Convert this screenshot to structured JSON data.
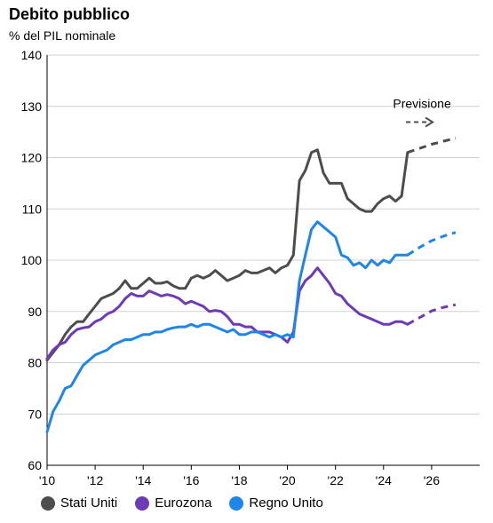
{
  "chart_data": {
    "type": "line",
    "title": "Debito pubblico",
    "subtitle": "% del PIL nominale",
    "ylim": [
      60,
      140
    ],
    "yticks": [
      60,
      70,
      80,
      90,
      100,
      110,
      120,
      130,
      140
    ],
    "xlim": [
      2010,
      2028
    ],
    "xticks": [
      {
        "value": 2010,
        "label": "'10"
      },
      {
        "value": 2012,
        "label": "'12"
      },
      {
        "value": 2014,
        "label": "'14"
      },
      {
        "value": 2016,
        "label": "'16"
      },
      {
        "value": 2018,
        "label": "'18"
      },
      {
        "value": 2020,
        "label": "'20"
      },
      {
        "value": 2022,
        "label": "'22"
      },
      {
        "value": 2024,
        "label": "'24"
      },
      {
        "value": 2026,
        "label": "'26"
      }
    ],
    "annotation": {
      "text": "Previsione",
      "x": 2025.6,
      "y": 129.7
    },
    "legend_placement": "bottom",
    "series": [
      {
        "name": "Stati Uniti",
        "color": "#4d4d4d",
        "actual": [
          [
            2010.0,
            80.5
          ],
          [
            2010.25,
            82.0
          ],
          [
            2010.5,
            83.5
          ],
          [
            2010.75,
            85.5
          ],
          [
            2011.0,
            87.0
          ],
          [
            2011.25,
            88.0
          ],
          [
            2011.5,
            88.0
          ],
          [
            2011.75,
            89.5
          ],
          [
            2012.0,
            91.0
          ],
          [
            2012.25,
            92.5
          ],
          [
            2012.5,
            93.0
          ],
          [
            2012.75,
            93.5
          ],
          [
            2013.0,
            94.5
          ],
          [
            2013.25,
            96.0
          ],
          [
            2013.5,
            94.5
          ],
          [
            2013.75,
            94.5
          ],
          [
            2014.0,
            95.5
          ],
          [
            2014.25,
            96.5
          ],
          [
            2014.5,
            95.5
          ],
          [
            2014.75,
            95.5
          ],
          [
            2015.0,
            95.8
          ],
          [
            2015.25,
            95.0
          ],
          [
            2015.5,
            94.5
          ],
          [
            2015.75,
            94.5
          ],
          [
            2016.0,
            96.5
          ],
          [
            2016.25,
            97.0
          ],
          [
            2016.5,
            96.5
          ],
          [
            2016.75,
            97.0
          ],
          [
            2017.0,
            98.0
          ],
          [
            2017.25,
            97.0
          ],
          [
            2017.5,
            96.0
          ],
          [
            2017.75,
            96.5
          ],
          [
            2018.0,
            97.0
          ],
          [
            2018.25,
            98.0
          ],
          [
            2018.5,
            97.5
          ],
          [
            2018.75,
            97.5
          ],
          [
            2019.0,
            98.0
          ],
          [
            2019.25,
            98.5
          ],
          [
            2019.5,
            97.5
          ],
          [
            2019.75,
            98.5
          ],
          [
            2020.0,
            99.0
          ],
          [
            2020.25,
            101.0
          ],
          [
            2020.5,
            115.5
          ],
          [
            2020.75,
            117.5
          ],
          [
            2021.0,
            121.0
          ],
          [
            2021.25,
            121.5
          ],
          [
            2021.5,
            117.0
          ],
          [
            2021.75,
            115.0
          ],
          [
            2022.0,
            115.0
          ],
          [
            2022.25,
            115.0
          ],
          [
            2022.5,
            112.0
          ],
          [
            2022.75,
            111.0
          ],
          [
            2023.0,
            110.0
          ],
          [
            2023.25,
            109.5
          ],
          [
            2023.5,
            109.5
          ],
          [
            2023.75,
            111.0
          ],
          [
            2024.0,
            112.0
          ],
          [
            2024.25,
            112.5
          ],
          [
            2024.5,
            111.5
          ],
          [
            2024.75,
            112.5
          ],
          [
            2025.0,
            121.0
          ]
        ],
        "forecast": [
          [
            2025.0,
            121.0
          ],
          [
            2025.5,
            121.8
          ],
          [
            2026.0,
            122.6
          ],
          [
            2026.5,
            123.2
          ],
          [
            2027.0,
            123.8
          ]
        ]
      },
      {
        "name": "Eurozona",
        "color": "#6e3ab8",
        "actual": [
          [
            2010.0,
            80.8
          ],
          [
            2010.25,
            82.5
          ],
          [
            2010.5,
            83.5
          ],
          [
            2010.75,
            84.0
          ],
          [
            2011.0,
            85.5
          ],
          [
            2011.25,
            86.5
          ],
          [
            2011.5,
            86.8
          ],
          [
            2011.75,
            87.0
          ],
          [
            2012.0,
            88.0
          ],
          [
            2012.25,
            88.5
          ],
          [
            2012.5,
            89.5
          ],
          [
            2012.75,
            90.0
          ],
          [
            2013.0,
            91.0
          ],
          [
            2013.25,
            92.5
          ],
          [
            2013.5,
            93.5
          ],
          [
            2013.75,
            93.0
          ],
          [
            2014.0,
            93.0
          ],
          [
            2014.25,
            94.0
          ],
          [
            2014.5,
            93.5
          ],
          [
            2014.75,
            93.0
          ],
          [
            2015.0,
            93.3
          ],
          [
            2015.25,
            93.0
          ],
          [
            2015.5,
            92.5
          ],
          [
            2015.75,
            91.5
          ],
          [
            2016.0,
            92.0
          ],
          [
            2016.25,
            91.5
          ],
          [
            2016.5,
            91.0
          ],
          [
            2016.75,
            90.0
          ],
          [
            2017.0,
            90.2
          ],
          [
            2017.25,
            90.0
          ],
          [
            2017.5,
            89.0
          ],
          [
            2017.75,
            87.5
          ],
          [
            2018.0,
            87.5
          ],
          [
            2018.25,
            87.0
          ],
          [
            2018.5,
            87.0
          ],
          [
            2018.75,
            86.0
          ],
          [
            2019.0,
            86.0
          ],
          [
            2019.25,
            86.0
          ],
          [
            2019.5,
            85.5
          ],
          [
            2019.75,
            85.0
          ],
          [
            2020.0,
            84.0
          ],
          [
            2020.25,
            86.0
          ],
          [
            2020.5,
            94.0
          ],
          [
            2020.75,
            96.0
          ],
          [
            2021.0,
            97.0
          ],
          [
            2021.25,
            98.5
          ],
          [
            2021.5,
            97.0
          ],
          [
            2021.75,
            95.5
          ],
          [
            2022.0,
            93.5
          ],
          [
            2022.25,
            93.0
          ],
          [
            2022.5,
            91.5
          ],
          [
            2022.75,
            90.5
          ],
          [
            2023.0,
            89.5
          ],
          [
            2023.25,
            89.0
          ],
          [
            2023.5,
            88.5
          ],
          [
            2023.75,
            88.0
          ],
          [
            2024.0,
            87.5
          ],
          [
            2024.25,
            87.5
          ],
          [
            2024.5,
            88.0
          ],
          [
            2024.75,
            88.0
          ],
          [
            2025.0,
            87.5
          ]
        ],
        "forecast": [
          [
            2025.0,
            87.5
          ],
          [
            2025.5,
            88.8
          ],
          [
            2026.0,
            90.1
          ],
          [
            2026.5,
            90.8
          ],
          [
            2027.0,
            91.3
          ]
        ]
      },
      {
        "name": "Regno Unito",
        "color": "#1f85ea",
        "actual": [
          [
            2010.0,
            66.5
          ],
          [
            2010.25,
            70.5
          ],
          [
            2010.5,
            72.5
          ],
          [
            2010.75,
            75.0
          ],
          [
            2011.0,
            75.5
          ],
          [
            2011.25,
            77.5
          ],
          [
            2011.5,
            79.5
          ],
          [
            2011.75,
            80.5
          ],
          [
            2012.0,
            81.5
          ],
          [
            2012.25,
            82.0
          ],
          [
            2012.5,
            82.5
          ],
          [
            2012.75,
            83.5
          ],
          [
            2013.0,
            84.0
          ],
          [
            2013.25,
            84.5
          ],
          [
            2013.5,
            84.5
          ],
          [
            2013.75,
            85.0
          ],
          [
            2014.0,
            85.5
          ],
          [
            2014.25,
            85.5
          ],
          [
            2014.5,
            86.0
          ],
          [
            2014.75,
            86.0
          ],
          [
            2015.0,
            86.5
          ],
          [
            2015.25,
            86.8
          ],
          [
            2015.5,
            87.0
          ],
          [
            2015.75,
            87.0
          ],
          [
            2016.0,
            87.5
          ],
          [
            2016.25,
            87.0
          ],
          [
            2016.5,
            87.5
          ],
          [
            2016.75,
            87.5
          ],
          [
            2017.0,
            87.0
          ],
          [
            2017.25,
            86.5
          ],
          [
            2017.5,
            86.0
          ],
          [
            2017.75,
            86.5
          ],
          [
            2018.0,
            85.5
          ],
          [
            2018.25,
            85.5
          ],
          [
            2018.5,
            86.0
          ],
          [
            2018.75,
            86.0
          ],
          [
            2019.0,
            85.5
          ],
          [
            2019.25,
            85.0
          ],
          [
            2019.5,
            85.5
          ],
          [
            2019.75,
            85.0
          ],
          [
            2020.0,
            85.5
          ],
          [
            2020.25,
            85.0
          ],
          [
            2020.5,
            96.0
          ],
          [
            2020.75,
            101.0
          ],
          [
            2021.0,
            106.0
          ],
          [
            2021.25,
            107.5
          ],
          [
            2021.5,
            106.5
          ],
          [
            2021.75,
            105.5
          ],
          [
            2022.0,
            104.5
          ],
          [
            2022.25,
            101.0
          ],
          [
            2022.5,
            100.5
          ],
          [
            2022.75,
            99.0
          ],
          [
            2023.0,
            99.5
          ],
          [
            2023.25,
            98.5
          ],
          [
            2023.5,
            100.0
          ],
          [
            2023.75,
            99.0
          ],
          [
            2024.0,
            100.0
          ],
          [
            2024.25,
            99.5
          ],
          [
            2024.5,
            101.0
          ],
          [
            2024.75,
            101.0
          ],
          [
            2025.0,
            101.0
          ]
        ],
        "forecast": [
          [
            2025.0,
            101.0
          ],
          [
            2025.5,
            102.5
          ],
          [
            2026.0,
            103.8
          ],
          [
            2026.5,
            104.7
          ],
          [
            2027.0,
            105.4
          ]
        ]
      }
    ]
  }
}
